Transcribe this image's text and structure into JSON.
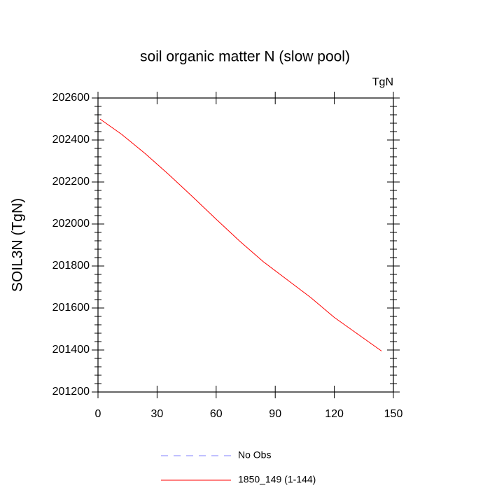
{
  "chart_data": {
    "type": "line",
    "title": "soil organic matter N (slow pool)",
    "units_label": "TgN",
    "y_label": "SOIL3N  (TgN)",
    "x": [
      1,
      12,
      24,
      36,
      48,
      60,
      72,
      84,
      96,
      108,
      120,
      132,
      144
    ],
    "series": [
      {
        "name": "1850_149 (1-144)",
        "color": "#ff0000",
        "values": [
          202500,
          202427,
          202335,
          202235,
          202130,
          202023,
          201918,
          201820,
          201735,
          201650,
          201555,
          201475,
          201395
        ]
      }
    ],
    "legend_entries": [
      {
        "name": "No Obs",
        "color": "#8080ff",
        "dashed": true
      },
      {
        "name": "1850_149 (1-144)",
        "color": "#ff0000",
        "dashed": false
      }
    ],
    "xlim": [
      0,
      150
    ],
    "xticks": [
      0,
      30,
      60,
      90,
      120,
      150
    ],
    "ylim": [
      201200,
      202600
    ],
    "yticks": [
      201200,
      201400,
      201600,
      201800,
      202000,
      202200,
      202400,
      202600
    ]
  }
}
